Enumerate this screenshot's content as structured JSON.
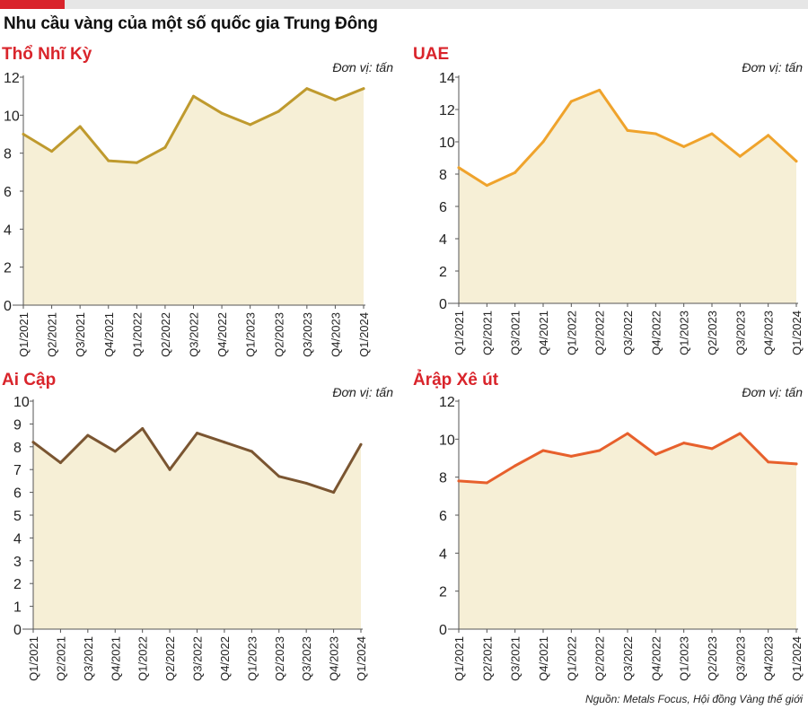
{
  "title": "Nhu cầu vàng của một số quốc gia Trung Đông",
  "source": "Nguồn: Metals Focus, Hội đồng Vàng thế giới",
  "colors": {
    "accent_red": "#d9242b",
    "fill": "#f6efd6",
    "axis": "#555555",
    "title_red": "#d9242b"
  },
  "chart_data": [
    {
      "type": "area",
      "title": "Thổ Nhĩ Kỳ",
      "unit": "Đơn vị: tấn",
      "categories": [
        "Q1/2021",
        "Q2/2021",
        "Q3/2021",
        "Q4/2021",
        "Q1/2022",
        "Q2/2022",
        "Q3/2022",
        "Q4/2022",
        "Q1/2023",
        "Q2/2023",
        "Q3/2023",
        "Q4/2023",
        "Q1/2024"
      ],
      "series": [
        {
          "values": [
            9.0,
            8.1,
            9.4,
            7.6,
            7.5,
            8.3,
            11.0,
            10.1,
            9.5,
            10.2,
            11.4,
            10.8,
            11.4
          ]
        }
      ],
      "ylim": [
        0,
        12
      ],
      "yticks": [
        0,
        2,
        4,
        6,
        8,
        10,
        12
      ],
      "line_color": "#bf9a2e",
      "line_width": 3,
      "markers": false
    },
    {
      "type": "area",
      "title": "UAE",
      "unit": "Đơn vị: tấn",
      "categories": [
        "Q1/2021",
        "Q2/2021",
        "Q3/2021",
        "Q4/2021",
        "Q1/2022",
        "Q2/2022",
        "Q3/2022",
        "Q4/2022",
        "Q1/2023",
        "Q2/2023",
        "Q3/2023",
        "Q4/2023",
        "Q1/2024"
      ],
      "series": [
        {
          "values": [
            8.4,
            7.3,
            8.1,
            10.0,
            12.5,
            13.2,
            10.7,
            10.5,
            9.7,
            10.5,
            9.1,
            10.4,
            8.8
          ]
        }
      ],
      "ylim": [
        0,
        14
      ],
      "yticks": [
        0,
        2,
        4,
        6,
        8,
        10,
        12,
        14
      ],
      "line_color": "#efa32c",
      "line_width": 3,
      "markers": false
    },
    {
      "type": "area",
      "title": "Ai Cập",
      "unit": "Đơn vị: tấn",
      "categories": [
        "Q1/2021",
        "Q2/2021",
        "Q3/2021",
        "Q4/2021",
        "Q1/2022",
        "Q2/2022",
        "Q3/2022",
        "Q4/2022",
        "Q1/2023",
        "Q2/2023",
        "Q3/2023",
        "Q4/2023",
        "Q1/2024"
      ],
      "series": [
        {
          "values": [
            8.2,
            7.3,
            8.5,
            7.8,
            8.8,
            7.0,
            8.6,
            8.2,
            7.8,
            6.7,
            6.4,
            6.0,
            8.1
          ]
        }
      ],
      "ylim": [
        0,
        10
      ],
      "yticks": [
        0,
        1,
        2,
        3,
        4,
        5,
        6,
        7,
        8,
        9,
        10
      ],
      "line_color": "#7a5531",
      "line_width": 3,
      "markers": false
    },
    {
      "type": "area",
      "title": "Ảrập Xê út",
      "unit": "Đơn vị: tấn",
      "categories": [
        "Q1/2021",
        "Q2/2021",
        "Q3/2021",
        "Q4/2021",
        "Q1/2022",
        "Q2/2022",
        "Q3/2022",
        "Q4/2022",
        "Q1/2023",
        "Q2/2023",
        "Q3/2023",
        "Q4/2023",
        "Q1/2024"
      ],
      "series": [
        {
          "values": [
            7.8,
            7.7,
            8.6,
            9.4,
            9.1,
            9.4,
            10.3,
            9.2,
            9.8,
            9.5,
            10.3,
            8.8,
            8.7
          ]
        }
      ],
      "ylim": [
        0,
        12
      ],
      "yticks": [
        0,
        2,
        4,
        6,
        8,
        10,
        12
      ],
      "line_color": "#e7602c",
      "line_width": 3,
      "markers": false
    }
  ]
}
